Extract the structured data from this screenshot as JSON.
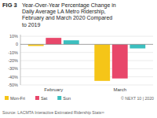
{
  "chart_data": {
    "type": "bar",
    "title": "FIG 3",
    "subtitle": "Year-Over-Year Percentage Change in\nDaily Average LA Metro Ridership,\nFebruary and March 2020 Compared\nto 2019",
    "categories": [
      "February",
      "March"
    ],
    "series": [
      {
        "name": "Mon-Fri",
        "color": "#F5C518",
        "values": [
          -2,
          -45
        ]
      },
      {
        "name": "Sat",
        "color": "#E8476A",
        "values": [
          8,
          -42
        ]
      },
      {
        "name": "Sun",
        "color": "#3BBFBF",
        "values": [
          5,
          -5
        ]
      }
    ],
    "ylim": [
      -50,
      12
    ],
    "yticks": [
      {
        "value": 10,
        "label": "10%"
      },
      0,
      {
        "value": -10,
        "label": "-10%"
      },
      {
        "value": -20,
        "label": "-20%"
      },
      {
        "value": -30,
        "label": "-30%"
      },
      {
        "value": -40,
        "label": "-40%"
      },
      {
        "value": -50,
        "label": "-50%"
      }
    ],
    "grid": true,
    "legend": "bottom",
    "annotations": [
      "Source: LACMTA Interactive Estimated Ridership Stats¹¹",
      "© NEXT 10 | 2020"
    ]
  }
}
